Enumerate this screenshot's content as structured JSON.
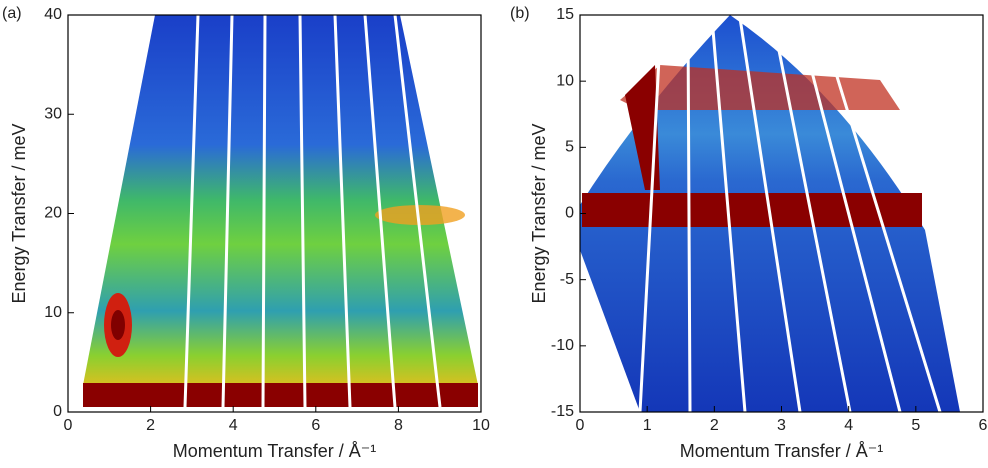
{
  "chart_data": [
    {
      "type": "heatmap",
      "panel_label": "(a)",
      "x_label": "Momentum Transfer / Å⁻¹",
      "y_label": "Energy Transfer / meV",
      "xlim": [
        0,
        10
      ],
      "ylim": [
        0,
        40
      ],
      "xticks": [
        0,
        2,
        4,
        6,
        8,
        10
      ],
      "yticks": [
        0,
        10,
        20,
        30,
        40
      ]
    },
    {
      "type": "heatmap",
      "panel_label": "(b)",
      "x_label": "Momentum Transfer / Å⁻¹",
      "y_label": "Energy Transfer / meV",
      "xlim": [
        0,
        6
      ],
      "ylim": [
        -15,
        15
      ],
      "xticks": [
        0,
        1,
        2,
        3,
        4,
        5,
        6
      ],
      "yticks": [
        -15,
        -10,
        -5,
        0,
        5,
        10,
        15
      ]
    }
  ]
}
